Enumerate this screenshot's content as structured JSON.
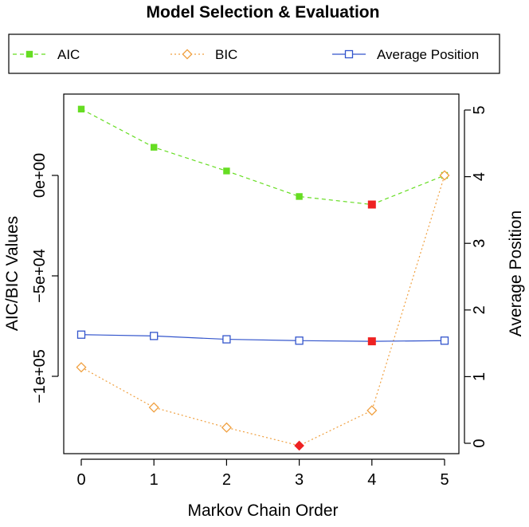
{
  "chart_data": {
    "type": "line",
    "title": "Model Selection & Evaluation",
    "xlabel": "Markov Chain Order",
    "ylabel_left": "AIC/BIC Values",
    "ylabel_right": "Average Position",
    "x": [
      0,
      1,
      2,
      3,
      4,
      5
    ],
    "x_ticks": [
      "0",
      "1",
      "2",
      "3",
      "4",
      "5"
    ],
    "y_left_lim": [
      -140000,
      33000
    ],
    "y_left_ticks": [
      0,
      -50000,
      -100000
    ],
    "y_left_tick_labels": [
      "0e+00",
      "−5e+04",
      "−1e+05"
    ],
    "y_right_lim": [
      0,
      5
    ],
    "y_right_ticks": [
      0,
      1,
      2,
      3,
      4,
      5
    ],
    "y_right_tick_labels": [
      "0",
      "1",
      "2",
      "3",
      "4",
      "5"
    ],
    "grid": false,
    "legend_position": "top",
    "series": [
      {
        "name": "AIC",
        "axis": "left",
        "values": [
          33000,
          14000,
          2200,
          -10500,
          -14500,
          0
        ],
        "color": "#66dd22",
        "marker": "filled-square",
        "line": "dashed",
        "highlight_index": 4,
        "highlight_color": "#ee2222"
      },
      {
        "name": "BIC",
        "axis": "left",
        "values": [
          -95500,
          -115500,
          -125500,
          -134500,
          -117000,
          0
        ],
        "color": "#f0a040",
        "marker": "open-diamond",
        "line": "dotted",
        "highlight_index": 3,
        "highlight_color": "#ee2222"
      },
      {
        "name": "Average Position",
        "axis": "right",
        "values": [
          1.63,
          1.61,
          1.56,
          1.54,
          1.53,
          1.54
        ],
        "color": "#3355cc",
        "marker": "open-square",
        "line": "solid",
        "highlight_index": 4,
        "highlight_color": "#ee2222"
      }
    ]
  }
}
